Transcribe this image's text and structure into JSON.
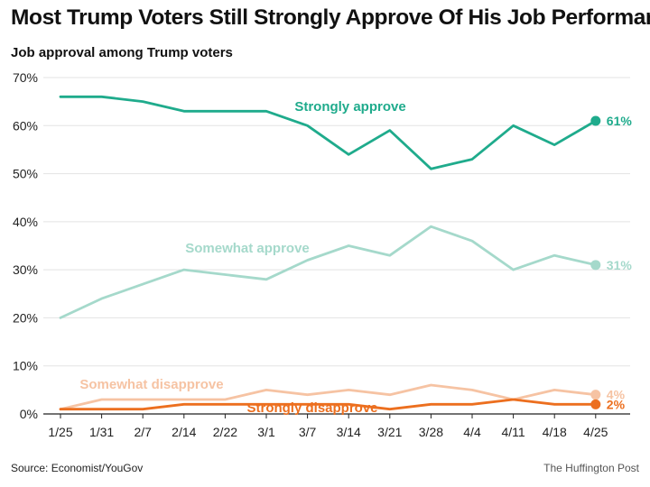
{
  "title": "Most Trump Voters Still Strongly Approve Of His Job Performance",
  "subtitle": "Job approval among Trump voters",
  "source": "Source: Economist/YouGov",
  "credit": "The Huffington Post",
  "chart_data": {
    "type": "line",
    "categories": [
      "1/25",
      "1/31",
      "2/7",
      "2/14",
      "2/22",
      "3/1",
      "3/7",
      "3/14",
      "3/21",
      "3/28",
      "4/4",
      "4/11",
      "4/18",
      "4/25"
    ],
    "ylim": [
      0,
      70
    ],
    "yticks": [
      "0%",
      "10%",
      "20%",
      "30%",
      "40%",
      "50%",
      "60%",
      "70%"
    ],
    "grid": true,
    "series": [
      {
        "name": "Strongly approve",
        "color": "#1fab8c",
        "values": [
          66,
          66,
          65,
          63,
          63,
          63,
          60,
          54,
          59,
          51,
          53,
          60,
          56,
          61
        ],
        "end_label": "61%"
      },
      {
        "name": "Somewhat approve",
        "color": "#a5d9cb",
        "values": [
          20,
          24,
          27,
          30,
          29,
          28,
          32,
          35,
          33,
          39,
          36,
          30,
          33,
          31
        ],
        "end_label": "31%"
      },
      {
        "name": "Somewhat disapprove",
        "color": "#f6c3a3",
        "values": [
          1,
          3,
          3,
          3,
          3,
          5,
          4,
          5,
          4,
          6,
          5,
          3,
          5,
          4
        ],
        "end_label": "4%"
      },
      {
        "name": "Strongly disapprove",
        "color": "#ec6f1f",
        "values": [
          1,
          1,
          1,
          2,
          2,
          2,
          2,
          2,
          1,
          2,
          2,
          3,
          2,
          2
        ],
        "end_label": "2%"
      }
    ]
  }
}
